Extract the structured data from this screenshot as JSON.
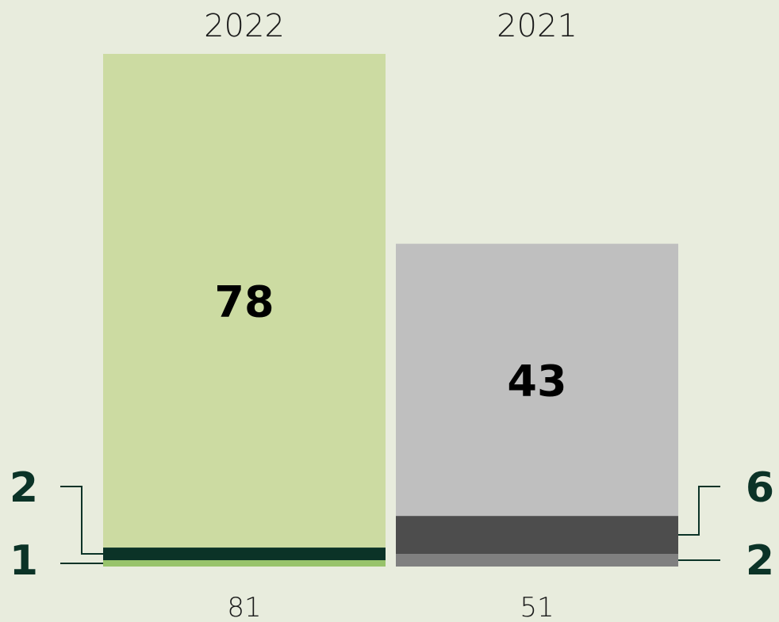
{
  "chart_data": {
    "type": "bar",
    "stacked": true,
    "categories": [
      "2022",
      "2021"
    ],
    "bars": [
      {
        "category": "2022",
        "total": "81",
        "segments": [
          {
            "value": 1,
            "label": "1",
            "color": "#98c36b",
            "label_position": "left"
          },
          {
            "value": 2,
            "label": "2",
            "color": "#0b3327",
            "label_position": "left"
          },
          {
            "value": 78,
            "label": "78",
            "color": "#ccdba2",
            "label_position": "inside"
          }
        ]
      },
      {
        "category": "2021",
        "total": "51",
        "segments": [
          {
            "value": 2,
            "label": "2",
            "color": "#808080",
            "label_position": "right"
          },
          {
            "value": 6,
            "label": "6",
            "color": "#4d4d4d",
            "label_position": "right"
          },
          {
            "value": 43,
            "label": "43",
            "color": "#bfbfbf",
            "label_position": "inside"
          }
        ]
      }
    ],
    "ylim": [
      0,
      81
    ],
    "grid": false,
    "legend": "none",
    "title": "",
    "xlabel": "",
    "ylabel": ""
  }
}
